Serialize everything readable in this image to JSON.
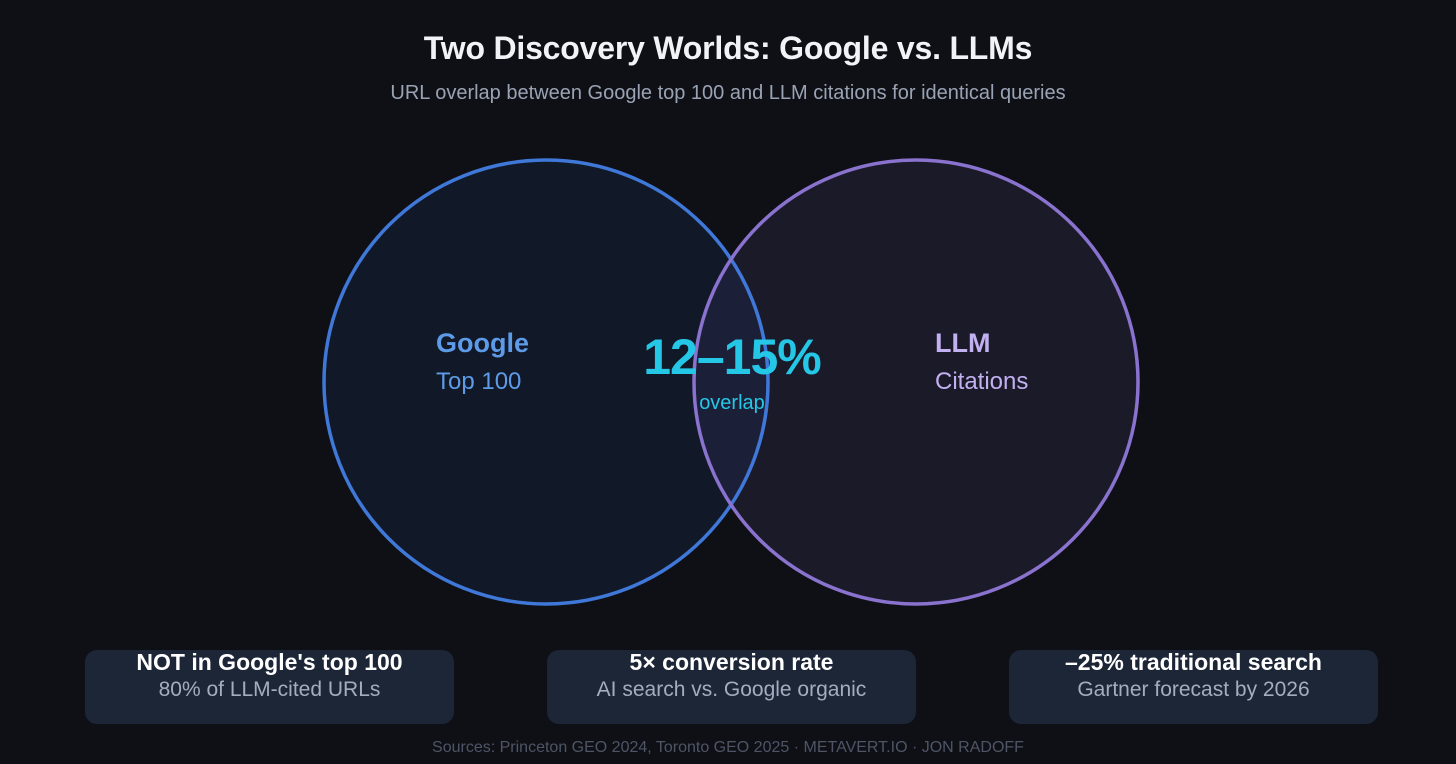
{
  "header": {
    "title": "Two Discovery Worlds: Google vs. LLMs",
    "subtitle": "URL overlap between Google top 100 and LLM citations for identical queries"
  },
  "venn": {
    "left": {
      "name": "Google",
      "sub": "Top 100",
      "color": "#3f78d8"
    },
    "right": {
      "name": "LLM",
      "sub": "Citations",
      "color": "#8a72cf"
    },
    "overlap": {
      "value": "12–15%",
      "label": "overlap",
      "color": "#25c7e7"
    }
  },
  "stats": [
    {
      "headline": "NOT in Google's top 100",
      "detail": "80% of LLM-cited URLs"
    },
    {
      "headline": "5× conversion rate",
      "detail": "AI search vs. Google organic"
    },
    {
      "headline": "–25% traditional search",
      "detail": "Gartner forecast by 2026"
    }
  ],
  "footer": {
    "sources": "Sources: Princeton GEO 2024, Toronto GEO 2025 · METAVERT.IO · JON RADOFF"
  }
}
